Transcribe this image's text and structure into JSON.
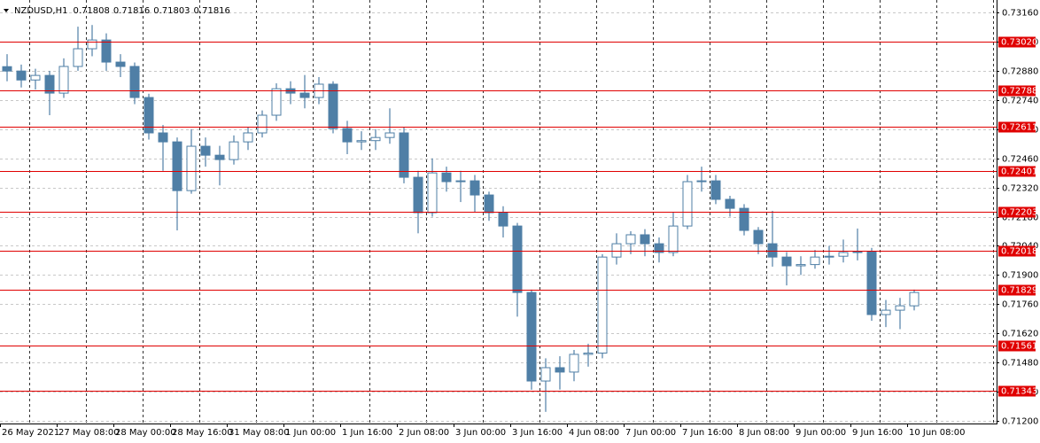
{
  "chart_data": {
    "type": "candlestick",
    "symbol": "NZDUSD,H1",
    "quote": [
      0.71808,
      0.71816,
      0.71803,
      0.71816
    ],
    "color": "#4f7fa6",
    "level_color": "#e00000",
    "ylim": [
      0.71187,
      0.7322
    ],
    "yticks": [
      {
        "value": 0.7316,
        "label": "0.73160"
      },
      {
        "value": 0.7302,
        "label": "0.73020"
      },
      {
        "value": 0.7288,
        "label": "0.72880"
      },
      {
        "value": 0.7274,
        "label": "0.72740"
      },
      {
        "value": 0.726,
        "label": "0.72600"
      },
      {
        "value": 0.7246,
        "label": "0.72460"
      },
      {
        "value": 0.7232,
        "label": "0.72320"
      },
      {
        "value": 0.7218,
        "label": "0.72180"
      },
      {
        "value": 0.7204,
        "label": "0.72040"
      },
      {
        "value": 0.719,
        "label": "0.71900"
      },
      {
        "value": 0.7176,
        "label": "0.71760"
      },
      {
        "value": 0.7162,
        "label": "0.71620"
      },
      {
        "value": 0.7148,
        "label": "0.71480"
      },
      {
        "value": 0.7134,
        "label": "0.71340"
      },
      {
        "value": 0.712,
        "label": "0.71200"
      }
    ],
    "levels": [
      {
        "value": 0.7302,
        "label": "0.73020"
      },
      {
        "value": 0.72788,
        "label": "0.72788"
      },
      {
        "value": 0.72611,
        "label": "0.72611"
      },
      {
        "value": 0.72401,
        "label": "0.72401"
      },
      {
        "value": 0.72203,
        "label": "0.72203"
      },
      {
        "value": 0.72018,
        "label": "0.72018"
      },
      {
        "value": 0.71829,
        "label": "0.71829"
      },
      {
        "value": 0.71561,
        "label": "0.71561"
      },
      {
        "value": 0.71343,
        "label": "0.71343"
      }
    ],
    "x_labels": [
      "26 May 2021",
      "27 May 08:00",
      "28 May 00:00",
      "28 May 16:00",
      "31 May 08:00",
      "1 Jun 00:00",
      "1 Jun 16:00",
      "2 Jun 08:00",
      "3 Jun 00:00",
      "3 Jun 16:00",
      "4 Jun 08:00",
      "7 Jun 00:00",
      "7 Jun 16:00",
      "8 Jun 08:00",
      "9 Jun 00:00",
      "9 Jun 16:00",
      "10 Jun 08:00"
    ],
    "open": [
      0.729,
      0.72879,
      0.72836,
      0.72858,
      0.72773,
      0.72901,
      0.72986,
      0.73028,
      0.72922,
      0.72901,
      0.72752,
      0.72582,
      0.72539,
      0.72305,
      0.72518,
      0.72475,
      0.72454,
      0.72539,
      0.72582,
      0.72667,
      0.72794,
      0.72773,
      0.72752,
      0.72816,
      0.72603,
      0.72539,
      0.72545,
      0.7256,
      0.72582,
      0.72369,
      0.72199,
      0.7239,
      0.72348,
      0.72352,
      0.72284,
      0.72199,
      0.72135,
      0.71816,
      0.71391,
      0.71455,
      0.71434,
      0.71519,
      0.71525,
      0.71986,
      0.7205,
      0.72093,
      0.7205,
      0.72008,
      0.72135,
      0.72348,
      0.72352,
      0.72263,
      0.7222,
      0.72114,
      0.7205,
      0.71986,
      0.71944,
      0.7195,
      0.71986,
      0.7199,
      0.72008,
      0.72012,
      0.7171,
      0.71731,
      0.71752
    ],
    "high": [
      0.7296,
      0.7291,
      0.7289,
      0.7288,
      0.7294,
      0.73092,
      0.731,
      0.7306,
      0.7296,
      0.7292,
      0.7277,
      0.7262,
      0.7256,
      0.726,
      0.7256,
      0.7252,
      0.7257,
      0.7261,
      0.7269,
      0.7282,
      0.7283,
      0.7286,
      0.7285,
      0.7283,
      0.7264,
      0.7259,
      0.726,
      0.727,
      0.7261,
      0.724,
      0.7246,
      0.7242,
      0.724,
      0.7238,
      0.723,
      0.7223,
      0.7215,
      0.7183,
      0.715,
      0.7151,
      0.7154,
      0.7157,
      0.72,
      0.721,
      0.7211,
      0.7212,
      0.7208,
      0.722,
      0.7238,
      0.7242,
      0.7238,
      0.7228,
      0.7224,
      0.7213,
      0.72208,
      0.7201,
      0.7199,
      0.7202,
      0.7204,
      0.7207,
      0.72123,
      0.7203,
      0.7178,
      0.7179,
      0.7183
    ],
    "low": [
      0.7283,
      0.728,
      0.7279,
      0.72667,
      0.7275,
      0.7288,
      0.7295,
      0.7288,
      0.7285,
      0.7272,
      0.7255,
      0.724,
      0.72114,
      0.7229,
      0.7242,
      0.7233,
      0.7243,
      0.725,
      0.7256,
      0.7264,
      0.7272,
      0.727,
      0.7272,
      0.7258,
      0.7248,
      0.725,
      0.725,
      0.7253,
      0.7234,
      0.721,
      0.7218,
      0.723,
      0.7225,
      0.722,
      0.7216,
      0.7208,
      0.717,
      0.71349,
      0.71243,
      0.7135,
      0.7139,
      0.7146,
      0.715,
      0.7195,
      0.72,
      0.7199,
      0.7196,
      0.7199,
      0.7212,
      0.723,
      0.7224,
      0.7218,
      0.7209,
      0.72,
      0.7194,
      0.7185,
      0.719,
      0.7193,
      0.7195,
      0.7196,
      0.7197,
      0.7168,
      0.7165,
      0.7164,
      0.7173
    ],
    "close": [
      0.72879,
      0.72836,
      0.72858,
      0.72773,
      0.72901,
      0.72986,
      0.73028,
      0.72922,
      0.72901,
      0.72752,
      0.72582,
      0.72539,
      0.72305,
      0.72518,
      0.72475,
      0.72454,
      0.72539,
      0.72582,
      0.72667,
      0.72794,
      0.72773,
      0.72752,
      0.72816,
      0.72603,
      0.72539,
      0.72545,
      0.7256,
      0.72582,
      0.72369,
      0.72199,
      0.7239,
      0.72348,
      0.72352,
      0.72284,
      0.72199,
      0.72135,
      0.71816,
      0.71391,
      0.71455,
      0.71434,
      0.71519,
      0.71525,
      0.71986,
      0.7205,
      0.72093,
      0.7205,
      0.72008,
      0.72135,
      0.72348,
      0.72352,
      0.72263,
      0.7222,
      0.72114,
      0.7205,
      0.71986,
      0.71944,
      0.7195,
      0.71986,
      0.7199,
      0.72008,
      0.72012,
      0.7171,
      0.71731,
      0.71752,
      0.71816
    ]
  }
}
